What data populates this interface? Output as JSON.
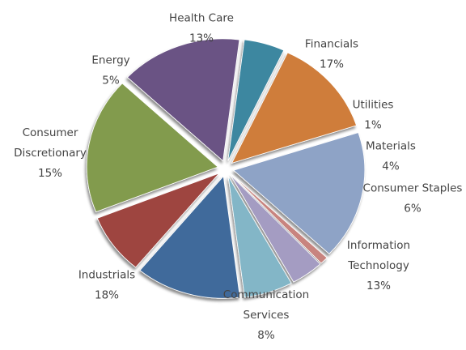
{
  "chart_data": {
    "type": "pie",
    "title": "",
    "slices": [
      {
        "name": "Financials",
        "value": 17,
        "display": "17%",
        "color": "#8EA3C6",
        "label_lines": [
          "Financials"
        ]
      },
      {
        "name": "Utilities",
        "value": 1,
        "display": "1%",
        "color": "#C8847F",
        "label_lines": [
          "Utilities"
        ]
      },
      {
        "name": "Materials",
        "value": 4,
        "display": "4%",
        "color": "#A49CC2",
        "label_lines": [
          "Materials"
        ]
      },
      {
        "name": "Consumer Staples",
        "value": 6,
        "display": "6%",
        "color": "#83B6C7",
        "label_lines": [
          "Consumer Staples"
        ]
      },
      {
        "name": "Information Technology",
        "value": 13,
        "display": "13%",
        "color": "#3F6A9B",
        "label_lines": [
          "Information",
          "Technology"
        ]
      },
      {
        "name": "Communication Services",
        "value": 8,
        "display": "8%",
        "color": "#9E4441",
        "label_lines": [
          "Communication",
          "Services"
        ]
      },
      {
        "name": "Industrials",
        "value": 18,
        "display": "18%",
        "color": "#829B4D",
        "label_lines": [
          "Industrials"
        ]
      },
      {
        "name": "Consumer Discretionary",
        "value": 15,
        "display": "15%",
        "color": "#6A5384",
        "label_lines": [
          "Consumer",
          "Discretionary"
        ]
      },
      {
        "name": "Energy",
        "value": 5,
        "display": "5%",
        "color": "#3D87A0",
        "label_lines": [
          "Energy"
        ]
      },
      {
        "name": "Health Care",
        "value": 13,
        "display": "13%",
        "color": "#CF7D3A",
        "label_lines": [
          "Health Care"
        ]
      }
    ],
    "legend": "none",
    "style": "exploded 3d pie"
  }
}
